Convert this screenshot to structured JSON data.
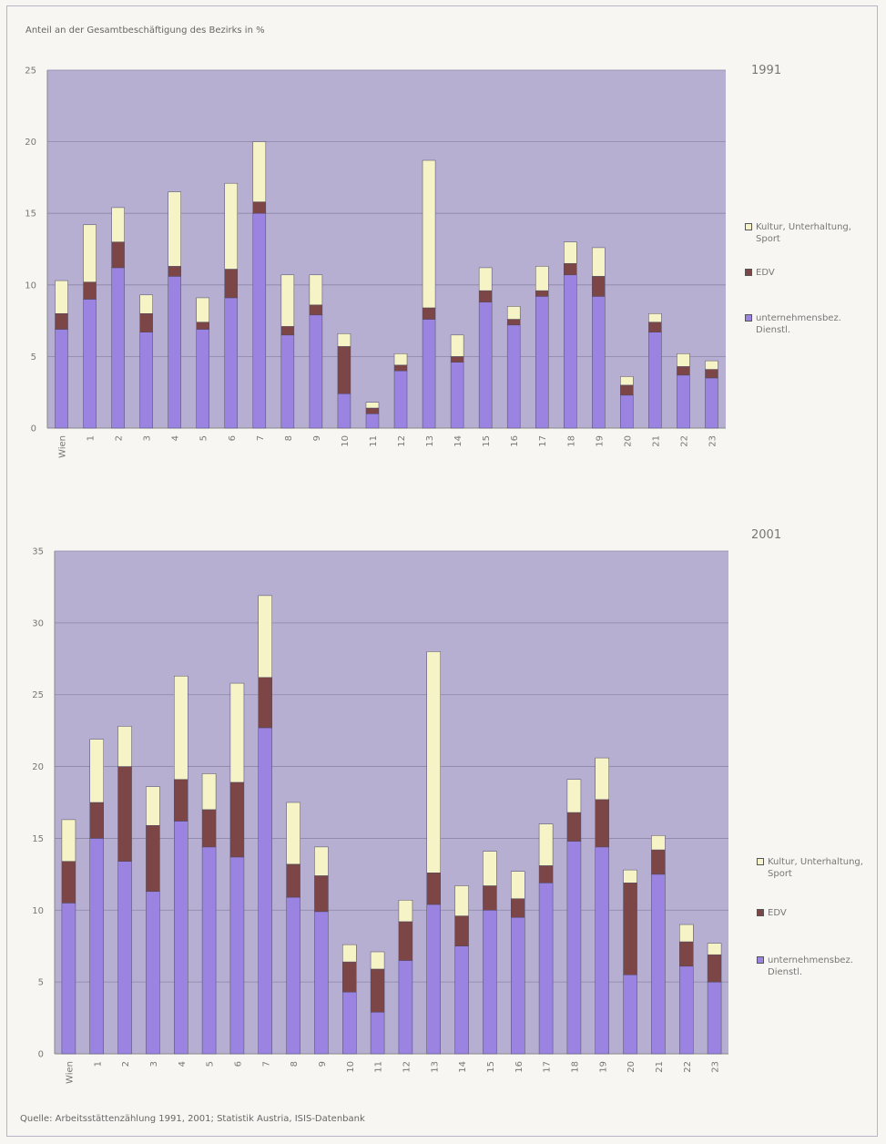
{
  "figure": {
    "ylabel": "Anteil an der Gesamtbeschäftigung des Bezirks in %",
    "source": "Quelle: Arbeitsstättenzählung 1991, 2001; Statistik Austria, ISIS-Datenbank"
  },
  "colors": {
    "plot_bg": "#b6afd1",
    "grid": "#8c86a7",
    "unternehmensbez": "#9b84e1",
    "edv": "#7c4546",
    "kultur": "#f6f4c6",
    "outline": "#4f4a63"
  },
  "chart_data": [
    {
      "type": "bar",
      "stacked": true,
      "year_label": "1991",
      "categories": [
        "Wien",
        "1",
        "2",
        "3",
        "4",
        "5",
        "6",
        "7",
        "8",
        "9",
        "10",
        "11",
        "12",
        "13",
        "14",
        "15",
        "16",
        "17",
        "18",
        "19",
        "20",
        "21",
        "22",
        "23"
      ],
      "ylim": [
        0,
        25
      ],
      "yticks": [
        "0",
        "5",
        "10",
        "15",
        "20",
        "25"
      ],
      "grid": true,
      "legend_position": "right",
      "series": [
        {
          "name": "unternehmensbez. Dienstl.",
          "values": [
            6.9,
            9.0,
            11.2,
            6.7,
            10.6,
            6.9,
            9.1,
            15.0,
            6.5,
            7.9,
            2.4,
            1.0,
            4.0,
            7.6,
            4.6,
            8.8,
            7.2,
            9.2,
            10.7,
            9.2,
            2.3,
            6.7,
            3.7,
            3.5
          ]
        },
        {
          "name": "EDV",
          "values": [
            1.1,
            1.2,
            1.8,
            1.3,
            0.7,
            0.5,
            2.0,
            0.8,
            0.6,
            0.7,
            3.3,
            0.4,
            0.4,
            0.8,
            0.4,
            0.8,
            0.4,
            0.4,
            0.8,
            1.4,
            0.7,
            0.7,
            0.6,
            0.6
          ]
        },
        {
          "name": "Kultur, Unterhaltung, Sport",
          "values": [
            2.3,
            4.0,
            2.4,
            1.3,
            5.2,
            1.7,
            6.0,
            4.2,
            3.6,
            2.1,
            0.9,
            0.4,
            0.8,
            10.3,
            1.5,
            1.6,
            0.9,
            1.7,
            1.5,
            2.0,
            0.6,
            0.6,
            0.9,
            0.6
          ]
        }
      ],
      "legend_entries": [
        "Kultur, Unterhaltung, Sport",
        "EDV",
        "unternehmensbez. Dienstl."
      ]
    },
    {
      "type": "bar",
      "stacked": true,
      "year_label": "2001",
      "categories": [
        "Wien",
        "1",
        "2",
        "3",
        "4",
        "5",
        "6",
        "7",
        "8",
        "9",
        "10",
        "11",
        "12",
        "13",
        "14",
        "15",
        "16",
        "17",
        "18",
        "19",
        "20",
        "21",
        "22",
        "23"
      ],
      "ylim": [
        0,
        35
      ],
      "yticks": [
        "0",
        "5",
        "10",
        "15",
        "20",
        "25",
        "30",
        "35"
      ],
      "grid": true,
      "legend_position": "right",
      "series": [
        {
          "name": "unternehmensbez. Dienstl.",
          "values": [
            10.5,
            15.0,
            13.4,
            11.3,
            16.2,
            14.4,
            13.7,
            22.7,
            10.9,
            9.9,
            4.3,
            2.9,
            6.5,
            10.4,
            7.5,
            10.0,
            9.5,
            11.9,
            14.8,
            14.4,
            5.5,
            12.5,
            6.1,
            5.0
          ]
        },
        {
          "name": "EDV",
          "values": [
            2.9,
            2.5,
            6.6,
            4.6,
            2.9,
            2.6,
            5.2,
            3.5,
            2.3,
            2.5,
            2.1,
            3.0,
            2.7,
            2.2,
            2.1,
            1.7,
            1.3,
            1.2,
            2.0,
            3.3,
            6.4,
            1.7,
            1.7,
            1.9
          ]
        },
        {
          "name": "Kultur, Unterhaltung, Sport",
          "values": [
            2.9,
            4.4,
            2.8,
            2.7,
            7.2,
            2.5,
            6.9,
            5.7,
            4.3,
            2.0,
            1.2,
            1.2,
            1.5,
            15.4,
            2.1,
            2.4,
            1.9,
            2.9,
            2.3,
            2.9,
            0.9,
            1.0,
            1.2,
            0.8
          ]
        }
      ],
      "legend_entries": [
        "Kultur, Unterhaltung, Sport",
        "EDV",
        "unternehmensbez. Dienstl."
      ]
    }
  ]
}
